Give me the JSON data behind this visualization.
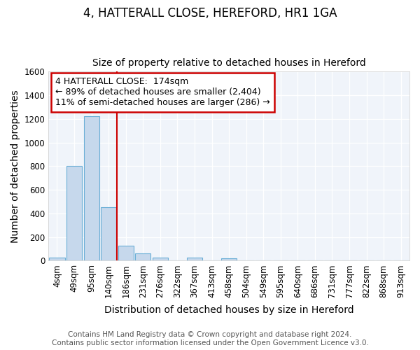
{
  "title": "4, HATTERALL CLOSE, HEREFORD, HR1 1GA",
  "subtitle": "Size of property relative to detached houses in Hereford",
  "xlabel": "Distribution of detached houses by size in Hereford",
  "ylabel": "Number of detached properties",
  "bin_labels": [
    "4sqm",
    "49sqm",
    "95sqm",
    "140sqm",
    "186sqm",
    "231sqm",
    "276sqm",
    "322sqm",
    "367sqm",
    "413sqm",
    "458sqm",
    "504sqm",
    "549sqm",
    "595sqm",
    "640sqm",
    "686sqm",
    "731sqm",
    "777sqm",
    "822sqm",
    "868sqm",
    "913sqm"
  ],
  "bar_values": [
    25,
    800,
    1220,
    450,
    125,
    60,
    25,
    0,
    25,
    0,
    20,
    0,
    0,
    0,
    0,
    0,
    0,
    0,
    0,
    0,
    0
  ],
  "bar_color": "#c6d8ec",
  "bar_edge_color": "#6aaed6",
  "vline_x": 3.5,
  "vline_color": "#cc0000",
  "ylim": [
    0,
    1600
  ],
  "yticks": [
    0,
    200,
    400,
    600,
    800,
    1000,
    1200,
    1400,
    1600
  ],
  "annotation_line1": "4 HATTERALL CLOSE:  174sqm",
  "annotation_line2": "← 89% of detached houses are smaller (2,404)",
  "annotation_line3": "11% of semi-detached houses are larger (286) →",
  "annotation_box_color": "#ffffff",
  "annotation_box_edge": "#cc0000",
  "footer_line1": "Contains HM Land Registry data © Crown copyright and database right 2024.",
  "footer_line2": "Contains public sector information licensed under the Open Government Licence v3.0.",
  "bg_color": "#ffffff",
  "plot_bg_color": "#f0f4fa",
  "title_fontsize": 12,
  "subtitle_fontsize": 10,
  "axis_label_fontsize": 10,
  "tick_fontsize": 8.5,
  "footer_fontsize": 7.5,
  "annotation_fontsize": 9
}
